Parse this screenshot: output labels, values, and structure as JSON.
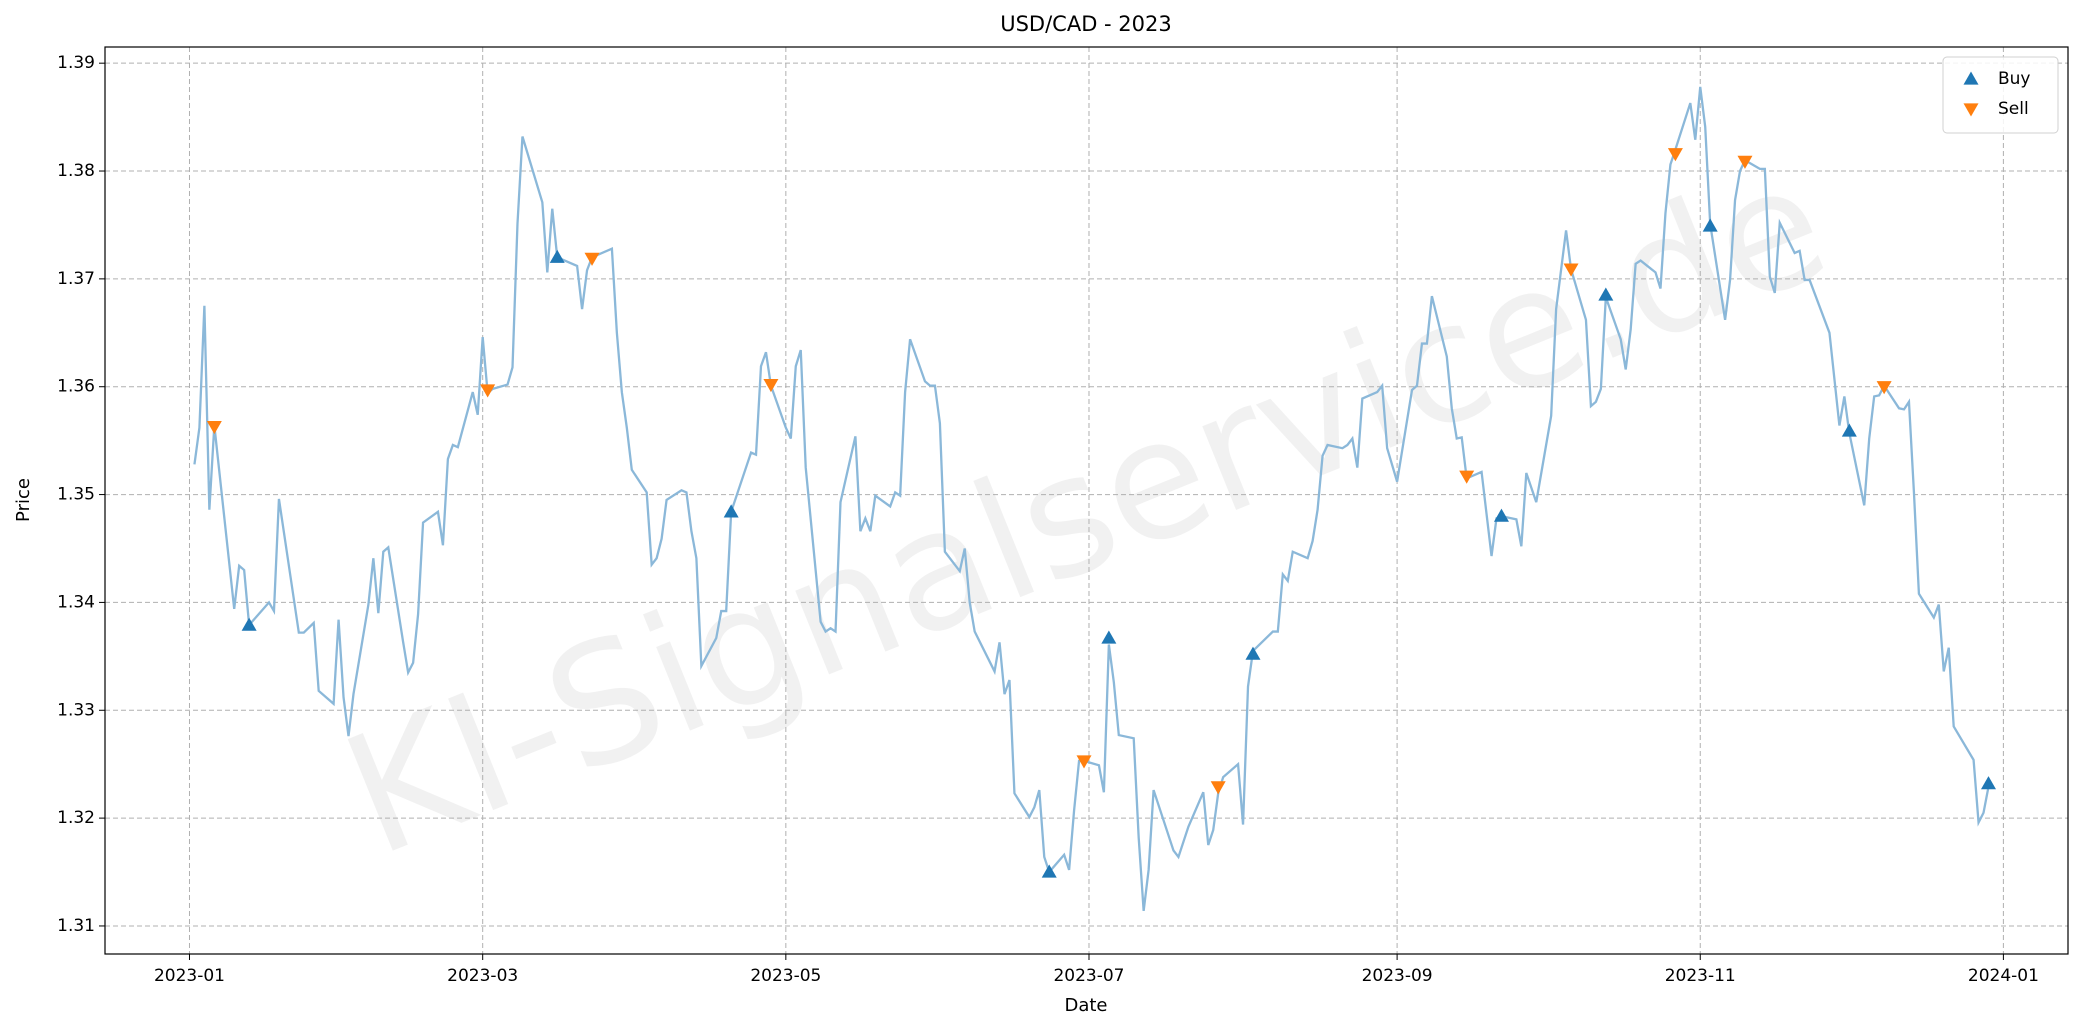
{
  "chart_data": {
    "type": "line",
    "title": "USD/CAD - 2023",
    "xlabel": "Date",
    "ylabel": "Price",
    "watermark": "KI-Signalservice.de",
    "line_color": "#8bb8d9",
    "x": [
      "2023-01-02",
      "2023-01-03",
      "2023-01-04",
      "2023-01-05",
      "2023-01-06",
      "2023-01-10",
      "2023-01-11",
      "2023-01-12",
      "2023-01-13",
      "2023-01-17",
      "2023-01-18",
      "2023-01-19",
      "2023-01-23",
      "2023-01-24",
      "2023-01-26",
      "2023-01-27",
      "2023-01-30",
      "2023-01-31",
      "2023-02-01",
      "2023-02-02",
      "2023-02-03",
      "2023-02-06",
      "2023-02-07",
      "2023-02-08",
      "2023-02-09",
      "2023-02-10",
      "2023-02-13",
      "2023-02-14",
      "2023-02-15",
      "2023-02-16",
      "2023-02-17",
      "2023-02-20",
      "2023-02-21",
      "2023-02-22",
      "2023-02-23",
      "2023-02-24",
      "2023-02-27",
      "2023-02-28",
      "2023-03-01",
      "2023-03-02",
      "2023-03-03",
      "2023-03-06",
      "2023-03-07",
      "2023-03-08",
      "2023-03-09",
      "2023-03-13",
      "2023-03-14",
      "2023-03-15",
      "2023-03-16",
      "2023-03-20",
      "2023-03-21",
      "2023-03-22",
      "2023-03-23",
      "2023-03-27",
      "2023-03-28",
      "2023-03-29",
      "2023-03-30",
      "2023-03-31",
      "2023-04-03",
      "2023-04-04",
      "2023-04-05",
      "2023-04-06",
      "2023-04-07",
      "2023-04-10",
      "2023-04-11",
      "2023-04-12",
      "2023-04-13",
      "2023-04-14",
      "2023-04-17",
      "2023-04-18",
      "2023-04-19",
      "2023-04-20",
      "2023-04-24",
      "2023-04-25",
      "2023-04-26",
      "2023-04-27",
      "2023-04-28",
      "2023-05-01",
      "2023-05-02",
      "2023-05-03",
      "2023-05-04",
      "2023-05-05",
      "2023-05-08",
      "2023-05-09",
      "2023-05-10",
      "2023-05-11",
      "2023-05-12",
      "2023-05-15",
      "2023-05-16",
      "2023-05-17",
      "2023-05-18",
      "2023-05-19",
      "2023-05-22",
      "2023-05-23",
      "2023-05-24",
      "2023-05-25",
      "2023-05-26",
      "2023-05-29",
      "2023-05-30",
      "2023-05-31",
      "2023-06-01",
      "2023-06-02",
      "2023-06-05",
      "2023-06-06",
      "2023-06-07",
      "2023-06-08",
      "2023-06-12",
      "2023-06-13",
      "2023-06-14",
      "2023-06-15",
      "2023-06-16",
      "2023-06-19",
      "2023-06-20",
      "2023-06-21",
      "2023-06-22",
      "2023-06-23",
      "2023-06-26",
      "2023-06-27",
      "2023-06-28",
      "2023-06-29",
      "2023-06-30",
      "2023-07-03",
      "2023-07-04",
      "2023-07-05",
      "2023-07-06",
      "2023-07-07",
      "2023-07-10",
      "2023-07-11",
      "2023-07-12",
      "2023-07-13",
      "2023-07-14",
      "2023-07-18",
      "2023-07-19",
      "2023-07-21",
      "2023-07-24",
      "2023-07-25",
      "2023-07-26",
      "2023-07-27",
      "2023-07-28",
      "2023-07-31",
      "2023-08-01",
      "2023-08-02",
      "2023-08-03",
      "2023-08-07",
      "2023-08-08",
      "2023-08-09",
      "2023-08-10",
      "2023-08-11",
      "2023-08-14",
      "2023-08-15",
      "2023-08-16",
      "2023-08-17",
      "2023-08-18",
      "2023-08-21",
      "2023-08-22",
      "2023-08-23",
      "2023-08-24",
      "2023-08-25",
      "2023-08-28",
      "2023-08-29",
      "2023-08-30",
      "2023-09-01",
      "2023-09-04",
      "2023-09-05",
      "2023-09-06",
      "2023-09-07",
      "2023-09-08",
      "2023-09-11",
      "2023-09-12",
      "2023-09-13",
      "2023-09-14",
      "2023-09-15",
      "2023-09-18",
      "2023-09-19",
      "2023-09-20",
      "2023-09-21",
      "2023-09-22",
      "2023-09-25",
      "2023-09-26",
      "2023-09-27",
      "2023-09-29",
      "2023-10-02",
      "2023-10-03",
      "2023-10-05",
      "2023-10-06",
      "2023-10-09",
      "2023-10-10",
      "2023-10-11",
      "2023-10-12",
      "2023-10-13",
      "2023-10-16",
      "2023-10-17",
      "2023-10-18",
      "2023-10-19",
      "2023-10-20",
      "2023-10-23",
      "2023-10-24",
      "2023-10-25",
      "2023-10-26",
      "2023-10-27",
      "2023-10-30",
      "2023-10-31",
      "2023-11-01",
      "2023-11-02",
      "2023-11-03",
      "2023-11-06",
      "2023-11-07",
      "2023-11-08",
      "2023-11-09",
      "2023-11-10",
      "2023-11-13",
      "2023-11-14",
      "2023-11-15",
      "2023-11-16",
      "2023-11-17",
      "2023-11-20",
      "2023-11-21",
      "2023-11-22",
      "2023-11-23",
      "2023-11-27",
      "2023-11-28",
      "2023-11-29",
      "2023-11-30",
      "2023-12-01",
      "2023-12-04",
      "2023-12-05",
      "2023-12-06",
      "2023-12-07",
      "2023-12-08",
      "2023-12-11",
      "2023-12-12",
      "2023-12-13",
      "2023-12-14",
      "2023-12-15",
      "2023-12-18",
      "2023-12-19",
      "2023-12-20",
      "2023-12-21",
      "2023-12-22",
      "2023-12-26",
      "2023-12-27",
      "2023-12-28",
      "2023-12-29"
    ],
    "values": [
      1.3528,
      1.3562,
      1.3675,
      1.3486,
      1.3564,
      1.3394,
      1.3434,
      1.343,
      1.3379,
      1.34,
      1.3392,
      1.3496,
      1.3372,
      1.3372,
      1.3381,
      1.3318,
      1.3306,
      1.3384,
      1.3312,
      1.3276,
      1.3315,
      1.3398,
      1.3441,
      1.339,
      1.3447,
      1.3451,
      1.3363,
      1.3335,
      1.3344,
      1.3389,
      1.3474,
      1.3484,
      1.3453,
      1.3533,
      1.3546,
      1.3544,
      1.3595,
      1.3574,
      1.3646,
      1.3594,
      1.3598,
      1.3602,
      1.3618,
      1.3751,
      1.3832,
      1.3771,
      1.3706,
      1.3765,
      1.372,
      1.3712,
      1.3672,
      1.3708,
      1.372,
      1.3728,
      1.365,
      1.3595,
      1.3562,
      1.3523,
      1.3502,
      1.3435,
      1.3441,
      1.3459,
      1.3495,
      1.3504,
      1.3502,
      1.3466,
      1.3441,
      1.3341,
      1.3367,
      1.3392,
      1.3392,
      1.3484,
      1.3539,
      1.3537,
      1.3619,
      1.3632,
      1.3601,
      1.3562,
      1.3552,
      1.3619,
      1.3634,
      1.3525,
      1.3382,
      1.3373,
      1.3376,
      1.3373,
      1.3493,
      1.3554,
      1.3466,
      1.3478,
      1.3466,
      1.3499,
      1.3489,
      1.3502,
      1.3499,
      1.3595,
      1.3644,
      1.3605,
      1.3601,
      1.3601,
      1.3566,
      1.3447,
      1.3429,
      1.345,
      1.34,
      1.3373,
      1.3336,
      1.3363,
      1.3315,
      1.3328,
      1.3223,
      1.3201,
      1.321,
      1.3226,
      1.3164,
      1.315,
      1.3166,
      1.3152,
      1.3207,
      1.3253,
      1.3253,
      1.3249,
      1.3224,
      1.3361,
      1.3326,
      1.3277,
      1.3274,
      1.3182,
      1.3114,
      1.3152,
      1.3226,
      1.317,
      1.3164,
      1.3192,
      1.3224,
      1.3175,
      1.3189,
      1.3223,
      1.3238,
      1.325,
      1.3194,
      1.3322,
      1.3355,
      1.3373,
      1.3373,
      1.3426,
      1.342,
      1.3447,
      1.3441,
      1.3457,
      1.3486,
      1.3536,
      1.3546,
      1.3543,
      1.3546,
      1.3552,
      1.3525,
      1.3589,
      1.3595,
      1.3601,
      1.3543,
      1.3512,
      1.3597,
      1.3601,
      1.364,
      1.364,
      1.3684,
      1.3628,
      1.358,
      1.3552,
      1.3553,
      1.3515,
      1.3521,
      1.3482,
      1.3443,
      1.3478,
      1.348,
      1.3477,
      1.3452,
      1.352,
      1.3493,
      1.3573,
      1.3672,
      1.3745,
      1.3709,
      1.3662,
      1.3582,
      1.3586,
      1.3598,
      1.3683,
      1.3644,
      1.3616,
      1.3653,
      1.3714,
      1.3717,
      1.3706,
      1.3691,
      1.3761,
      1.3806,
      1.382,
      1.3863,
      1.3829,
      1.3878,
      1.3841,
      1.3751,
      1.3662,
      1.3699,
      1.3773,
      1.38,
      1.381,
      1.3802,
      1.3802,
      1.3702,
      1.3687,
      1.3752,
      1.3724,
      1.3726,
      1.3699,
      1.3699,
      1.365,
      1.3607,
      1.3564,
      1.3591,
      1.3557,
      1.349,
      1.3552,
      1.3591,
      1.3592,
      1.3601,
      1.358,
      1.3579,
      1.3586,
      1.3502,
      1.3408,
      1.3386,
      1.3398,
      1.3336,
      1.3358,
      1.3285,
      1.3254,
      1.3196,
      1.3205,
      1.3229
    ],
    "series": [
      {
        "name": "Buy",
        "color": "#1f77b4",
        "marker": "triangle-up",
        "x": [
          "2023-01-13",
          "2023-03-16",
          "2023-04-20",
          "2023-06-23",
          "2023-07-05",
          "2023-08-03",
          "2023-09-22",
          "2023-10-13",
          "2023-11-03",
          "2023-12-01",
          "2023-12-29"
        ],
        "values": [
          1.3379,
          1.372,
          1.3484,
          1.315,
          1.3367,
          1.3352,
          1.348,
          1.3685,
          1.3749,
          1.3559,
          1.3232
        ]
      },
      {
        "name": "Sell",
        "color": "#ff7f0e",
        "marker": "triangle-down",
        "x": [
          "2023-01-06",
          "2023-03-02",
          "2023-03-23",
          "2023-04-28",
          "2023-06-30",
          "2023-07-27",
          "2023-09-15",
          "2023-10-06",
          "2023-10-27",
          "2023-11-10",
          "2023-12-08"
        ],
        "values": [
          1.3563,
          1.3597,
          1.3719,
          1.3602,
          1.3253,
          1.3229,
          1.3517,
          1.3709,
          1.3816,
          1.3809,
          1.36
        ]
      }
    ],
    "xlim": [
      "2022-12-15",
      "2024-01-14"
    ],
    "xticks": [
      {
        "value": "2023-01-01",
        "label": "2023-01"
      },
      {
        "value": "2023-03-01",
        "label": "2023-03"
      },
      {
        "value": "2023-05-01",
        "label": "2023-05"
      },
      {
        "value": "2023-07-01",
        "label": "2023-07"
      },
      {
        "value": "2023-09-01",
        "label": "2023-09"
      },
      {
        "value": "2023-11-01",
        "label": "2023-11"
      },
      {
        "value": "2024-01-01",
        "label": "2024-01"
      }
    ],
    "ylim": [
      1.3074,
      1.3915
    ],
    "yticks": [
      1.31,
      1.32,
      1.33,
      1.34,
      1.35,
      1.36,
      1.37,
      1.38,
      1.39
    ],
    "grid": true,
    "legend": "upper right"
  }
}
